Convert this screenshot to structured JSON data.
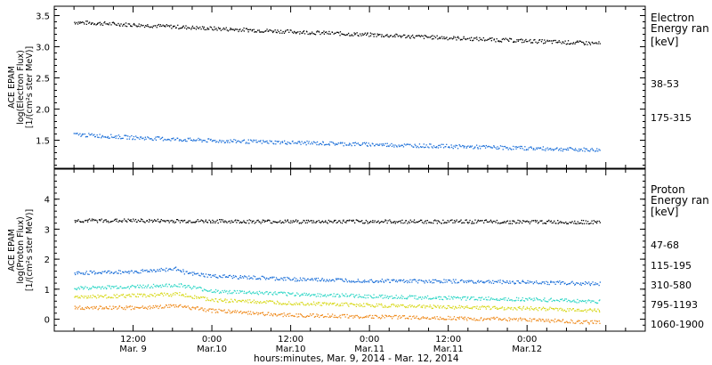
{
  "chart_data": [
    {
      "type": "scatter",
      "panel": "electron",
      "ylabel_lines": [
        "ACE EPAM",
        "log(Electron Flux)",
        "[1/(cm²s ster MeV)]"
      ],
      "ylim": [
        1.05,
        3.65
      ],
      "yticks": [
        "1.5",
        "2.0",
        "2.5",
        "3.0",
        "3.5"
      ],
      "ytick_values": [
        1.5,
        2.0,
        2.5,
        3.0,
        3.5
      ],
      "legend_title": "Electron",
      "legend_subtitle": "Energy ran",
      "legend_unit": "[keV]",
      "series": [
        {
          "name": "38-53",
          "color": "#000000",
          "x_hours": [
            3,
            12,
            24,
            36,
            48,
            60,
            72,
            83
          ],
          "values": [
            3.4,
            3.36,
            3.3,
            3.25,
            3.2,
            3.15,
            3.1,
            3.06
          ]
        },
        {
          "name": "175-315",
          "color": "#1a6ed8",
          "x_hours": [
            3,
            12,
            24,
            36,
            48,
            60,
            72,
            83
          ],
          "values": [
            1.6,
            1.55,
            1.5,
            1.47,
            1.44,
            1.41,
            1.38,
            1.35
          ]
        }
      ]
    },
    {
      "type": "scatter",
      "panel": "proton",
      "ylabel_lines": [
        "ACE EPAM",
        "log(Proton Flux)",
        "[1/(cm²s ster MeV)]"
      ],
      "ylim": [
        -0.4,
        5.0
      ],
      "yticks": [
        "0",
        "1",
        "2",
        "3",
        "4"
      ],
      "ytick_values": [
        0,
        1,
        2,
        3,
        4
      ],
      "legend_title": "Proton",
      "legend_subtitle": "Energy ran",
      "legend_unit": "[keV]",
      "series": [
        {
          "name": "47-68",
          "color": "#000000",
          "x_hours": [
            3,
            12,
            24,
            36,
            48,
            60,
            72,
            83
          ],
          "values": [
            3.3,
            3.3,
            3.28,
            3.27,
            3.27,
            3.27,
            3.26,
            3.25
          ]
        },
        {
          "name": "115-195",
          "color": "#1a6ed8",
          "x_hours": [
            3,
            12,
            19,
            20,
            24,
            36,
            48,
            60,
            72,
            83
          ],
          "values": [
            1.55,
            1.6,
            1.7,
            1.55,
            1.45,
            1.35,
            1.3,
            1.28,
            1.25,
            1.2
          ]
        },
        {
          "name": "310-580",
          "color": "#2fd6c6",
          "x_hours": [
            3,
            12,
            19,
            24,
            36,
            48,
            60,
            72,
            83
          ],
          "values": [
            1.05,
            1.1,
            1.15,
            0.95,
            0.85,
            0.78,
            0.72,
            0.68,
            0.6
          ]
        },
        {
          "name": "795-1193",
          "color": "#d7d818",
          "x_hours": [
            3,
            12,
            19,
            24,
            36,
            48,
            60,
            72,
            83
          ],
          "values": [
            0.75,
            0.8,
            0.85,
            0.65,
            0.55,
            0.48,
            0.42,
            0.38,
            0.3
          ]
        },
        {
          "name": "1060-1900",
          "color": "#ef8a1c",
          "x_hours": [
            3,
            12,
            19,
            24,
            36,
            48,
            60,
            72,
            83
          ],
          "values": [
            0.4,
            0.4,
            0.45,
            0.3,
            0.15,
            0.1,
            0.05,
            0.0,
            -0.1
          ]
        }
      ]
    }
  ],
  "x_axis": {
    "range_hours": [
      0,
      90
    ],
    "ticks": [
      {
        "hour": 12,
        "time": "12:00",
        "day": "Mar. 9"
      },
      {
        "hour": 24,
        "time": "0:00",
        "day": "Mar.10"
      },
      {
        "hour": 36,
        "time": "12:00",
        "day": "Mar.10"
      },
      {
        "hour": 48,
        "time": "0:00",
        "day": "Mar.11"
      },
      {
        "hour": 60,
        "time": "12:00",
        "day": "Mar.11"
      },
      {
        "hour": 72,
        "time": "0:00",
        "day": "Mar.12"
      }
    ],
    "title": "hours:minutes, Mar.  9, 2014 - Mar. 12, 2014"
  },
  "colors": {
    "frame": "#000000",
    "background": "#ffffff"
  }
}
